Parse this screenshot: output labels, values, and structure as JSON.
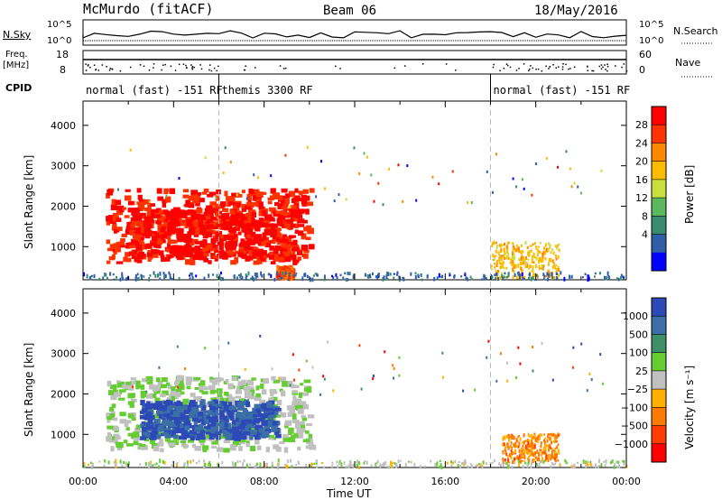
{
  "header": {
    "station": "McMurdo (fitACF)",
    "beam": "Beam 06",
    "date": "18/May/2016"
  },
  "panels": {
    "nsky": {
      "label": "N.Sky",
      "tick_top": "10^5",
      "tick_bottom": "10^0"
    },
    "freq": {
      "label_line1": "Freq.",
      "label_line2": "[MHz]",
      "tick_top": "18",
      "tick_bottom": "8"
    },
    "cpid": {
      "label": "CPID"
    },
    "right_nsearch": {
      "label": "N.Search",
      "tick_top": "10^5",
      "tick_bottom": "10^0"
    },
    "right_nave": {
      "label": "Nave",
      "tick_top": "60",
      "tick_bottom": "0"
    }
  },
  "modes": [
    {
      "label": "normal (fast) -151 RF",
      "start_hour": 0
    },
    {
      "label": "themis 3300 RF",
      "start_hour": 6
    },
    {
      "label": "normal (fast) -151 RF",
      "start_hour": 18
    }
  ],
  "colorbars": {
    "power": {
      "label": "Power [dB]",
      "ticks": [
        "28",
        "24",
        "20",
        "16",
        "12",
        "8",
        "4"
      ],
      "colors": [
        "#ff0000",
        "#ff3300",
        "#ff8800",
        "#ffbb00",
        "#c8e03c",
        "#5cb85c",
        "#3a8a70",
        "#2f5fa8",
        "#0000ff"
      ]
    },
    "velocity": {
      "label": "Velocity [m s⁻¹]",
      "ticks": [
        "1000",
        "500",
        "100",
        "25",
        "−25",
        "−100",
        "−500",
        "−1000"
      ],
      "colors": [
        "#2d49b8",
        "#3b6fa6",
        "#3f8f6b",
        "#66cc33",
        "#c0c0c0",
        "#ffb000",
        "#ff7a00",
        "#ff3b00",
        "#ff0000"
      ]
    }
  },
  "axes": {
    "ylabel": "Slant Range [km]",
    "xlabel": "Time UT",
    "yticks": [
      "4000",
      "3000",
      "2000",
      "1000"
    ],
    "xticks": [
      "00:00",
      "04:00",
      "08:00",
      "12:00",
      "16:00",
      "20:00",
      "00:00"
    ]
  },
  "chart_data": [
    {
      "type": "heatmap",
      "title": "",
      "quantity": "Power [dB]",
      "x_range_hours": [
        0,
        24
      ],
      "y_range_km": [
        180,
        4600
      ],
      "color_range": [
        0,
        32
      ],
      "grid": false,
      "echo_regions": [
        {
          "t_start": 1.0,
          "t_end": 10.0,
          "r_min": 600,
          "r_max": 2400,
          "value": 28
        },
        {
          "t_start": 2.0,
          "t_end": 9.5,
          "r_min": 700,
          "r_max": 1900,
          "value": 30
        },
        {
          "t_start": 8.5,
          "t_end": 9.3,
          "r_min": 200,
          "r_max": 500,
          "value": 26
        },
        {
          "t_start": 18.0,
          "t_end": 21.0,
          "r_min": 200,
          "r_max": 1100,
          "value": 20
        },
        {
          "t_start": 0.0,
          "t_end": 24.0,
          "r_min": 180,
          "r_max": 350,
          "value": 6
        }
      ]
    },
    {
      "type": "heatmap",
      "title": "",
      "quantity": "Velocity [m s-1]",
      "x_range_hours": [
        0,
        24
      ],
      "y_range_km": [
        180,
        4600
      ],
      "color_range": [
        -1000,
        1000
      ],
      "grid": false,
      "echo_regions": [
        {
          "t_start": 1.0,
          "t_end": 10.0,
          "r_min": 600,
          "r_max": 2400,
          "value": 100
        },
        {
          "t_start": 2.5,
          "t_end": 8.5,
          "r_min": 900,
          "r_max": 1800,
          "value": 800
        },
        {
          "t_start": 18.5,
          "t_end": 21.0,
          "r_min": 300,
          "r_max": 1000,
          "value": -400
        },
        {
          "t_start": 0.0,
          "t_end": 24.0,
          "r_min": 180,
          "r_max": 350,
          "value": 25
        }
      ]
    }
  ]
}
